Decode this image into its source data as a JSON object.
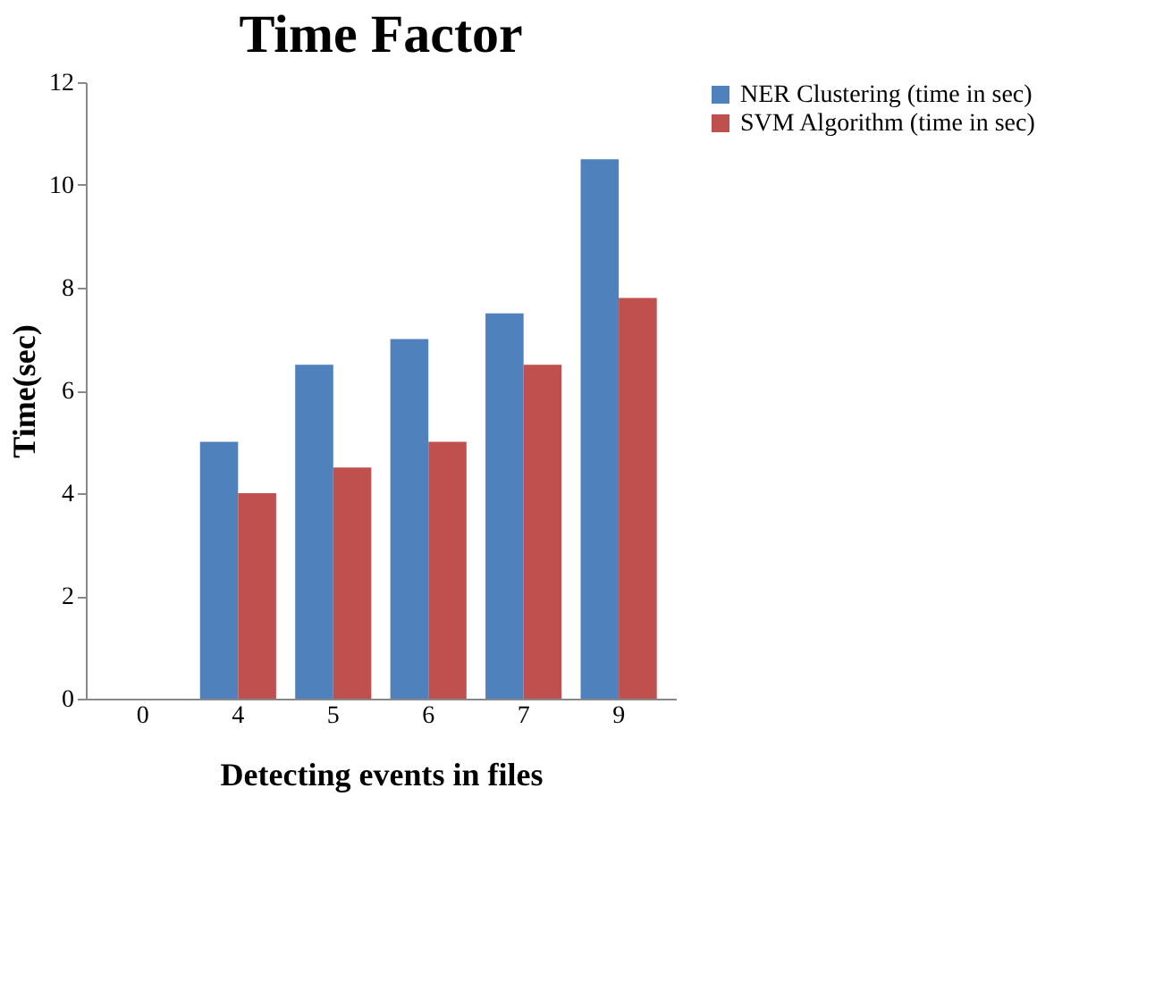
{
  "chart_data": {
    "type": "bar",
    "title": "Time Factor",
    "xlabel": "Detecting events in files",
    "ylabel": "Time(sec)",
    "categories": [
      "0",
      "4",
      "5",
      "6",
      "7",
      "9"
    ],
    "series": [
      {
        "name": "NER Clustering (time in sec)",
        "color": "#4f81bd",
        "values": [
          0,
          5,
          6.5,
          7,
          7.5,
          10.5
        ]
      },
      {
        "name": "SVM Algorithm (time in sec)",
        "color": "#c0504d",
        "values": [
          0,
          4,
          4.5,
          5,
          6.5,
          7.8
        ]
      }
    ],
    "ylim": [
      0,
      12
    ],
    "yticks": [
      0,
      2,
      4,
      6,
      8,
      10,
      12
    ],
    "grid": false,
    "legend": "right"
  }
}
